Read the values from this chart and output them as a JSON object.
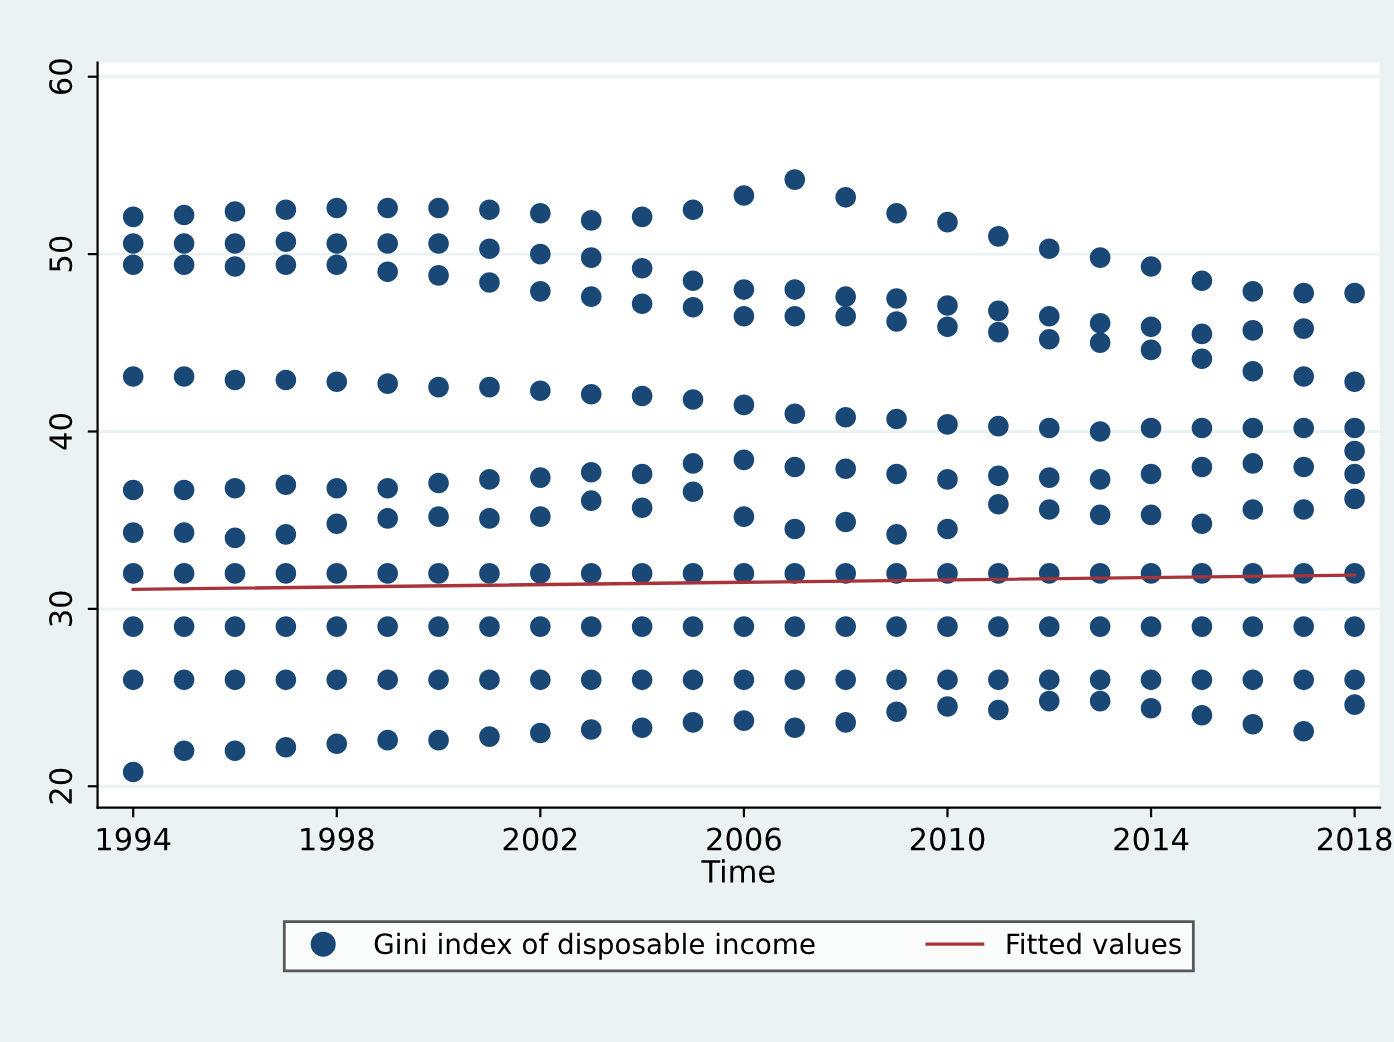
{
  "chart_data": {
    "type": "scatter",
    "xlabel": "Time",
    "xlim": [
      1993.3,
      2018.5
    ],
    "ylim": [
      18.8,
      60.8
    ],
    "xticks": [
      1994,
      1998,
      2002,
      2006,
      2010,
      2014,
      2018
    ],
    "yticks": [
      20,
      30,
      40,
      50,
      60
    ],
    "grid": "y",
    "legend": "bottom",
    "series": [
      {
        "name": "Gini index of disposable income",
        "marker": "circle",
        "color": "#1a4876",
        "x": [
          1994,
          1994,
          1994,
          1994,
          1994,
          1994,
          1994,
          1994,
          1994,
          1994,
          1995,
          1995,
          1995,
          1995,
          1995,
          1995,
          1995,
          1995,
          1995,
          1995,
          1996,
          1996,
          1996,
          1996,
          1996,
          1996,
          1996,
          1996,
          1996,
          1996,
          1997,
          1997,
          1997,
          1997,
          1997,
          1997,
          1997,
          1997,
          1997,
          1997,
          1998,
          1998,
          1998,
          1998,
          1998,
          1998,
          1998,
          1998,
          1998,
          1998,
          1999,
          1999,
          1999,
          1999,
          1999,
          1999,
          1999,
          1999,
          1999,
          1999,
          2000,
          2000,
          2000,
          2000,
          2000,
          2000,
          2000,
          2000,
          2000,
          2000,
          2001,
          2001,
          2001,
          2001,
          2001,
          2001,
          2001,
          2001,
          2001,
          2001,
          2002,
          2002,
          2002,
          2002,
          2002,
          2002,
          2002,
          2002,
          2002,
          2002,
          2003,
          2003,
          2003,
          2003,
          2003,
          2003,
          2003,
          2003,
          2003,
          2003,
          2004,
          2004,
          2004,
          2004,
          2004,
          2004,
          2004,
          2004,
          2004,
          2004,
          2005,
          2005,
          2005,
          2005,
          2005,
          2005,
          2005,
          2005,
          2005,
          2005,
          2006,
          2006,
          2006,
          2006,
          2006,
          2006,
          2006,
          2006,
          2006,
          2006,
          2007,
          2007,
          2007,
          2007,
          2007,
          2007,
          2007,
          2007,
          2007,
          2007,
          2008,
          2008,
          2008,
          2008,
          2008,
          2008,
          2008,
          2008,
          2008,
          2008,
          2009,
          2009,
          2009,
          2009,
          2009,
          2009,
          2009,
          2009,
          2009,
          2009,
          2010,
          2010,
          2010,
          2010,
          2010,
          2010,
          2010,
          2010,
          2010,
          2010,
          2011,
          2011,
          2011,
          2011,
          2011,
          2011,
          2011,
          2011,
          2011,
          2011,
          2012,
          2012,
          2012,
          2012,
          2012,
          2012,
          2012,
          2012,
          2012,
          2012,
          2013,
          2013,
          2013,
          2013,
          2013,
          2013,
          2013,
          2013,
          2013,
          2013,
          2014,
          2014,
          2014,
          2014,
          2014,
          2014,
          2014,
          2014,
          2014,
          2014,
          2015,
          2015,
          2015,
          2015,
          2015,
          2015,
          2015,
          2015,
          2015,
          2015,
          2016,
          2016,
          2016,
          2016,
          2016,
          2016,
          2016,
          2016,
          2016,
          2016,
          2017,
          2017,
          2017,
          2017,
          2017,
          2017,
          2017,
          2017,
          2017,
          2017,
          2018,
          2018,
          2018,
          2018,
          2018,
          2018,
          2018,
          2018,
          2018,
          2018
        ],
        "values": [
          52.1,
          50.6,
          49.4,
          43.1,
          36.7,
          34.3,
          32,
          29,
          26,
          20.8,
          52.2,
          50.6,
          49.4,
          43.1,
          36.7,
          34.3,
          32,
          29,
          26,
          22.0,
          52.4,
          50.6,
          49.3,
          42.9,
          36.8,
          34.0,
          32,
          29,
          26,
          22.0,
          52.5,
          50.7,
          49.4,
          42.9,
          37.0,
          34.2,
          32,
          29,
          26,
          22.2,
          52.6,
          50.6,
          49.4,
          42.8,
          36.8,
          34.8,
          32,
          29,
          26,
          22.4,
          52.6,
          50.6,
          49.0,
          42.7,
          36.8,
          35.1,
          32,
          29,
          26,
          22.6,
          52.6,
          50.6,
          48.8,
          42.5,
          37.1,
          35.2,
          32,
          29,
          26,
          22.6,
          52.5,
          50.3,
          48.4,
          42.5,
          37.3,
          35.1,
          32,
          29,
          26,
          22.8,
          52.3,
          50.0,
          47.9,
          42.3,
          37.4,
          35.2,
          32,
          29,
          26,
          23.0,
          51.9,
          49.8,
          47.6,
          42.1,
          37.7,
          36.1,
          32,
          29,
          26,
          23.2,
          52.1,
          49.2,
          47.2,
          42.0,
          37.6,
          35.7,
          32,
          29,
          26,
          23.3,
          52.5,
          48.5,
          47.0,
          41.8,
          38.2,
          36.6,
          32,
          29,
          26,
          23.6,
          53.3,
          48.0,
          46.5,
          41.5,
          38.4,
          35.2,
          32,
          29,
          26,
          23.7,
          54.2,
          48.0,
          46.5,
          41.0,
          38.0,
          34.5,
          32,
          29,
          26,
          23.3,
          53.2,
          47.6,
          46.5,
          40.8,
          37.9,
          34.9,
          32,
          29,
          26,
          23.6,
          52.3,
          47.5,
          46.2,
          40.7,
          37.6,
          34.2,
          32,
          29,
          26,
          24.2,
          51.8,
          47.1,
          45.9,
          40.4,
          37.3,
          34.5,
          32,
          29,
          26,
          24.5,
          51.0,
          46.8,
          45.6,
          40.3,
          37.5,
          35.9,
          32,
          29,
          26,
          24.3,
          50.3,
          46.5,
          45.2,
          40.2,
          37.4,
          35.6,
          32,
          29,
          26,
          24.8,
          49.8,
          46.1,
          45.0,
          40.0,
          37.3,
          35.3,
          32,
          29,
          26,
          24.8,
          49.3,
          45.9,
          44.6,
          40.2,
          37.6,
          35.3,
          32,
          29,
          26,
          24.4,
          48.5,
          45.5,
          44.1,
          40.2,
          38.0,
          34.8,
          32,
          29,
          26,
          24.0,
          47.9,
          45.7,
          43.4,
          40.2,
          38.2,
          35.6,
          32,
          29,
          26,
          23.5,
          47.8,
          45.8,
          43.1,
          40.2,
          38.0,
          35.6,
          32,
          29,
          26,
          23.1,
          47.8,
          42.8,
          40.2,
          38.9,
          37.6,
          36.2,
          32,
          29,
          26,
          24.6
        ]
      },
      {
        "name": "Fitted values",
        "type": "line",
        "color": "#a8343a",
        "x": [
          1994,
          2018
        ],
        "values": [
          31.1,
          31.9
        ]
      }
    ]
  }
}
